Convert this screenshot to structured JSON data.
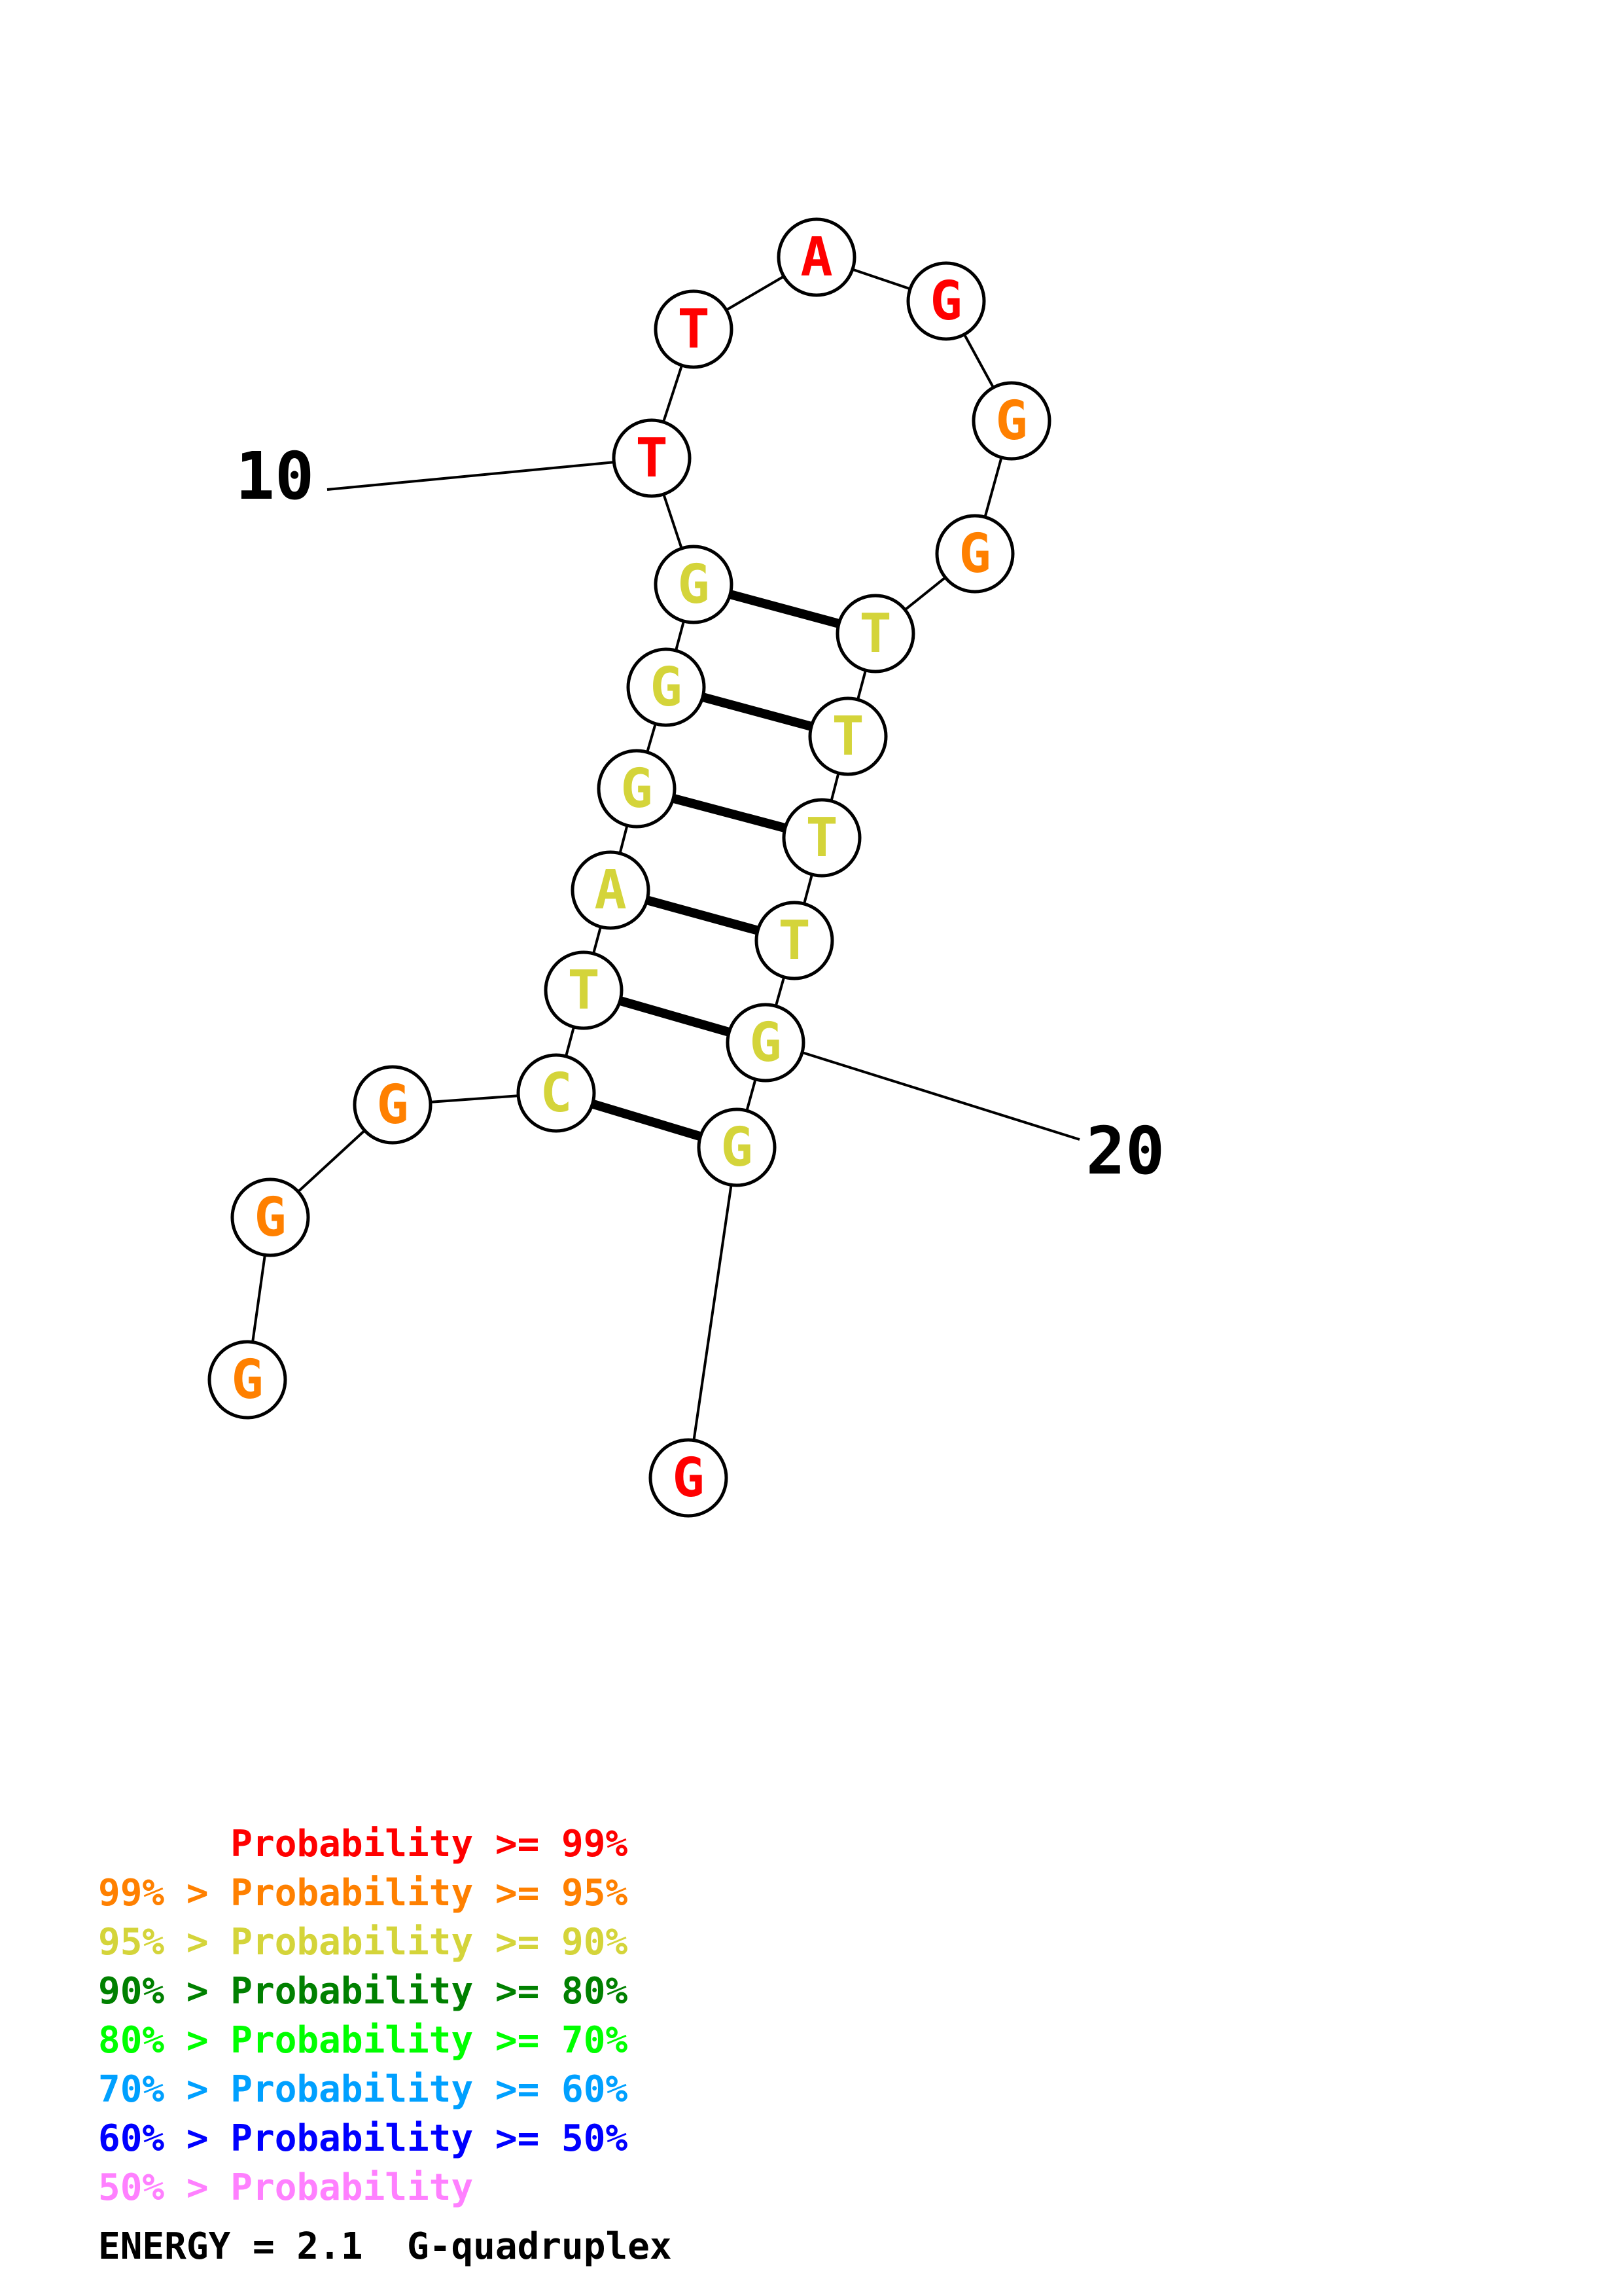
{
  "colors": {
    "p99": "#ff0000",
    "p95": "#ff8000",
    "p90": "#d4d43a",
    "p80": "#008000",
    "p70": "#00ff00",
    "p60": "#00a0ff",
    "p50": "#0000ff",
    "plow": "#ff80ff"
  },
  "nucleotides": [
    {
      "id": 1,
      "base": "G",
      "prob": "p95"
    },
    {
      "id": 2,
      "base": "G",
      "prob": "p95"
    },
    {
      "id": 3,
      "base": "G",
      "prob": "p95"
    },
    {
      "id": 4,
      "base": "C",
      "prob": "p90"
    },
    {
      "id": 5,
      "base": "T",
      "prob": "p90"
    },
    {
      "id": 6,
      "base": "A",
      "prob": "p90"
    },
    {
      "id": 7,
      "base": "G",
      "prob": "p90"
    },
    {
      "id": 8,
      "base": "G",
      "prob": "p90"
    },
    {
      "id": 9,
      "base": "G",
      "prob": "p90"
    },
    {
      "id": 10,
      "base": "T",
      "prob": "p99"
    },
    {
      "id": 11,
      "base": "T",
      "prob": "p99"
    },
    {
      "id": 12,
      "base": "A",
      "prob": "p99"
    },
    {
      "id": 13,
      "base": "G",
      "prob": "p99"
    },
    {
      "id": 14,
      "base": "G",
      "prob": "p95"
    },
    {
      "id": 15,
      "base": "G",
      "prob": "p95"
    },
    {
      "id": 16,
      "base": "T",
      "prob": "p90"
    },
    {
      "id": 17,
      "base": "T",
      "prob": "p90"
    },
    {
      "id": 18,
      "base": "T",
      "prob": "p90"
    },
    {
      "id": 19,
      "base": "T",
      "prob": "p90"
    },
    {
      "id": 20,
      "base": "G",
      "prob": "p90"
    },
    {
      "id": 21,
      "base": "G",
      "prob": "p90"
    },
    {
      "id": 22,
      "base": "G",
      "prob": "p99"
    }
  ],
  "pairs": [
    [
      9,
      16
    ],
    [
      8,
      17
    ],
    [
      7,
      18
    ],
    [
      6,
      19
    ],
    [
      5,
      20
    ],
    [
      4,
      21
    ]
  ],
  "index_labels": [
    {
      "nuc": 10,
      "text": "10"
    },
    {
      "nuc": 20,
      "text": "20"
    }
  ],
  "legend": [
    {
      "prefix": "    ",
      "label": "Probability >= 99%",
      "prob": "p99"
    },
    {
      "prefix": "99% > ",
      "label": "Probability >= 95%",
      "prob": "p95"
    },
    {
      "prefix": "95% > ",
      "label": "Probability >= 90%",
      "prob": "p90"
    },
    {
      "prefix": "90% > ",
      "label": "Probability >= 80%",
      "prob": "p80"
    },
    {
      "prefix": "80% > ",
      "label": "Probability >= 70%",
      "prob": "p70"
    },
    {
      "prefix": "70% > ",
      "label": "Probability >= 60%",
      "prob": "p60"
    },
    {
      "prefix": "60% > ",
      "label": "Probability >= 50%",
      "prob": "p50"
    },
    {
      "prefix": "50% > ",
      "label": "Probability",
      "prob": "plow"
    }
  ],
  "energy": "ENERGY = 2.1  G-quadruplex"
}
